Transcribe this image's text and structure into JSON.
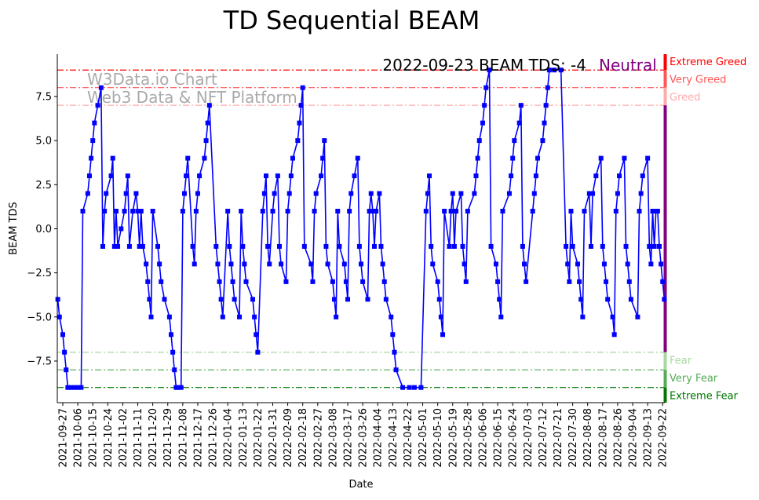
{
  "chart_data": {
    "type": "line",
    "title": "TD Sequential BEAM",
    "xlabel": "Date",
    "ylabel": "BEAM TDS",
    "x_start_date": "2021-09-27",
    "x_unit": "days since 2021-09-27",
    "xlim": [
      -3.3,
      361.3
    ],
    "ylim": [
      -9.86,
      9.9
    ],
    "grid": false,
    "x_tick_labels": [
      "2021-09-27",
      "2021-10-06",
      "2021-10-15",
      "2021-10-24",
      "2021-11-02",
      "2021-11-11",
      "2021-11-20",
      "2021-11-29",
      "2021-12-08",
      "2021-12-17",
      "2021-12-26",
      "2022-01-04",
      "2022-01-13",
      "2022-01-22",
      "2022-01-31",
      "2022-02-09",
      "2022-02-18",
      "2022-02-27",
      "2022-03-08",
      "2022-03-17",
      "2022-03-26",
      "2022-04-04",
      "2022-04-13",
      "2022-04-22",
      "2022-05-01",
      "2022-05-10",
      "2022-05-19",
      "2022-05-28",
      "2022-06-06",
      "2022-06-15",
      "2022-06-24",
      "2022-07-03",
      "2022-07-12",
      "2022-07-21",
      "2022-07-30",
      "2022-08-08",
      "2022-08-17",
      "2022-08-26",
      "2022-09-04",
      "2022-09-13",
      "2022-09-22"
    ],
    "x_tick_step_days": 9,
    "y_ticks": [
      -7.5,
      -5.0,
      -2.5,
      0.0,
      2.5,
      5.0,
      7.5
    ],
    "y_tick_labels": [
      "−7.5",
      "−5.0",
      "−2.5",
      "0.0",
      "2.5",
      "5.0",
      "7.5"
    ],
    "series": [
      {
        "name": "BEAM TDS",
        "color": "#0000ff",
        "x": [
          -3,
          -2,
          0,
          1,
          2,
          3,
          5,
          7,
          9,
          11,
          12,
          15,
          16,
          17,
          18,
          19,
          21,
          23,
          24,
          25,
          26,
          29,
          30,
          31,
          32,
          33,
          35,
          37,
          38,
          39,
          40,
          42,
          44,
          45,
          46,
          47,
          48,
          50,
          51,
          52,
          53,
          54,
          57,
          58,
          59,
          61,
          64,
          65,
          66,
          67,
          68,
          69,
          71,
          72,
          73,
          74,
          75,
          78,
          79,
          80,
          81,
          82,
          85,
          86,
          87,
          88,
          92,
          93,
          94,
          95,
          96,
          99,
          100,
          101,
          102,
          103,
          106,
          107,
          108,
          109,
          110,
          114,
          115,
          116,
          117,
          120,
          121,
          122,
          123,
          124,
          126,
          127,
          129,
          130,
          131,
          134,
          135,
          136,
          137,
          138,
          141,
          142,
          143,
          144,
          145,
          149,
          150,
          151,
          152,
          155,
          156,
          157,
          158,
          159,
          162,
          163,
          164,
          165,
          166,
          169,
          170,
          171,
          172,
          173,
          175,
          177,
          178,
          179,
          180,
          183,
          184,
          185,
          186,
          187,
          188,
          190,
          191,
          192,
          193,
          194,
          197,
          198,
          199,
          200,
          204,
          208,
          211,
          215,
          218,
          219,
          220,
          221,
          222,
          225,
          226,
          227,
          228,
          229,
          232,
          233,
          234,
          235,
          236,
          239,
          240,
          241,
          242,
          243,
          247,
          248,
          249,
          250,
          252,
          253,
          254,
          256,
          257,
          260,
          261,
          262,
          263,
          264,
          268,
          269,
          270,
          271,
          274,
          275,
          276,
          277,
          278,
          282,
          283,
          284,
          285,
          288,
          289,
          290,
          291,
          292,
          295,
          299,
          302,
          303,
          304,
          305,
          306,
          309,
          310,
          311,
          312,
          313,
          316,
          317,
          318,
          320,
          323,
          324,
          325,
          326,
          327,
          330,
          331,
          332,
          333,
          334,
          337,
          338,
          339,
          340,
          341,
          345,
          346,
          347,
          348,
          351,
          352,
          353,
          354,
          355,
          356,
          357,
          358,
          359,
          360,
          361
        ],
        "y": [
          -4,
          -5,
          -6,
          -7,
          -8,
          -9,
          -9,
          -9,
          -9,
          -9,
          1,
          2,
          3,
          4,
          5,
          6,
          7,
          8,
          -1,
          1,
          2,
          3,
          4,
          -1,
          1,
          -1,
          0,
          1,
          2,
          3,
          -1,
          1,
          2,
          1,
          -1,
          1,
          -1,
          -2,
          -3,
          -4,
          -5,
          1,
          -1,
          -2,
          -3,
          -4,
          -5,
          -6,
          -7,
          -8,
          -9,
          -9,
          -9,
          1,
          2,
          3,
          4,
          -1,
          -2,
          1,
          2,
          3,
          4,
          5,
          6,
          7,
          -1,
          -2,
          -3,
          -4,
          -5,
          1,
          -1,
          -2,
          -3,
          -4,
          -5,
          1,
          -1,
          -2,
          -3,
          -4,
          -5,
          -6,
          -7,
          1,
          2,
          3,
          -1,
          -2,
          1,
          2,
          3,
          -1,
          -2,
          -3,
          1,
          2,
          3,
          4,
          5,
          6,
          7,
          8,
          -1,
          -2,
          -3,
          1,
          2,
          3,
          4,
          5,
          -1,
          -2,
          -3,
          -4,
          -5,
          1,
          -1,
          -2,
          -3,
          -4,
          1,
          2,
          3,
          4,
          -1,
          -2,
          -3,
          -4,
          1,
          2,
          1,
          -1,
          1,
          2,
          -1,
          -2,
          -3,
          -4,
          -5,
          -6,
          -7,
          -8,
          -9,
          -9,
          -9,
          -9,
          1,
          2,
          3,
          -1,
          -2,
          -3,
          -4,
          -5,
          -6,
          1,
          -1,
          1,
          2,
          -1,
          1,
          2,
          -1,
          -2,
          -3,
          1,
          2,
          3,
          4,
          5,
          6,
          7,
          8,
          9,
          -1,
          -2,
          -3,
          -4,
          -5,
          1,
          2,
          3,
          4,
          5,
          6,
          7,
          -1,
          -2,
          -3,
          1,
          2,
          3,
          4,
          5,
          6,
          7,
          8,
          9,
          9,
          9,
          -1,
          -2,
          -3,
          1,
          -1,
          -2,
          -3,
          -4,
          -5,
          1,
          2,
          -1,
          2,
          3,
          4,
          -1,
          -2,
          -3,
          -4,
          -5,
          -6,
          1,
          2,
          3,
          4,
          -1,
          -2,
          -3,
          -4,
          -5,
          1,
          2,
          3,
          4,
          -1,
          -2,
          1,
          -1,
          1,
          1,
          -1,
          -2,
          -3,
          -4
        ]
      }
    ],
    "levels": [
      {
        "value": 9,
        "label": "Extreme Greed",
        "color": "#ff0000"
      },
      {
        "value": 8,
        "label": "Very Greed",
        "color": "#ff5555"
      },
      {
        "value": 7,
        "label": "Greed",
        "color": "#ffaaaa"
      },
      {
        "value": -7,
        "label": "Fear",
        "color": "#a8d8a0"
      },
      {
        "value": -8,
        "label": "Very Fear",
        "color": "#55aa55"
      },
      {
        "value": -9,
        "label": "Extreme Fear",
        "color": "#007700"
      }
    ],
    "status_bar": [
      {
        "from": 9,
        "to": 9.9,
        "color": "#ff0000"
      },
      {
        "from": 8,
        "to": 9,
        "color": "#ff5555"
      },
      {
        "from": 7,
        "to": 8,
        "color": "#ffaaaa"
      },
      {
        "from": -7,
        "to": 7,
        "color": "#800080"
      },
      {
        "from": -8,
        "to": -7,
        "color": "#a8d8a0"
      },
      {
        "from": -9,
        "to": -8,
        "color": "#55aa55"
      },
      {
        "from": -9.86,
        "to": -9,
        "color": "#007700"
      }
    ],
    "annotation": "2022-09-23 BEAM TDS: -4",
    "annotation_status": "Neutral",
    "annotation_status_color": "#800080",
    "watermark": [
      "W3Data.io Chart",
      "Web3 Data & NFT Platform"
    ]
  }
}
